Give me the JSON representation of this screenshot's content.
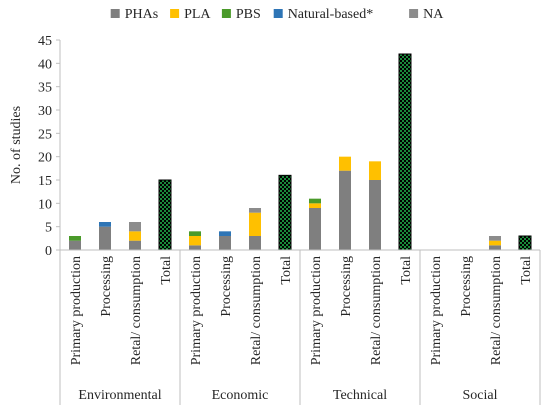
{
  "chart_data": {
    "type": "bar",
    "stacked": true,
    "title": "",
    "xlabel": "",
    "ylabel": "No. of studies",
    "ylim": [
      0,
      45
    ],
    "yticks": [
      0,
      5,
      10,
      15,
      20,
      25,
      30,
      35,
      40,
      45
    ],
    "grid": false,
    "legend_position": "top",
    "categories": [
      "Primary production",
      "Processing",
      "Retal/ consumption",
      "Total",
      "Primary production",
      "Processing",
      "Retal/ consumption",
      "Total",
      "Primary production",
      "Processing",
      "Retal/ consumption",
      "Total",
      "Primary production",
      "Processing",
      "Retal/ consumption",
      "Total"
    ],
    "groups": [
      {
        "name": "Environmental",
        "span": [
          0,
          3
        ]
      },
      {
        "name": "Economic",
        "span": [
          4,
          7
        ]
      },
      {
        "name": "Technical",
        "span": [
          8,
          11
        ]
      },
      {
        "name": "Social",
        "span": [
          12,
          15
        ]
      }
    ],
    "series": [
      {
        "name": "PHAs",
        "color": "#7f7f7f",
        "values": [
          2,
          5,
          2,
          0,
          1,
          3,
          3,
          0,
          9,
          17,
          15,
          0,
          0,
          0,
          1,
          0
        ]
      },
      {
        "name": "PLA",
        "color": "#ffc000",
        "values": [
          0,
          0,
          2,
          0,
          2,
          0,
          5,
          0,
          1,
          3,
          4,
          0,
          0,
          0,
          1,
          0
        ]
      },
      {
        "name": "PBS",
        "color": "#4a9a2a",
        "values": [
          1,
          0,
          0,
          0,
          1,
          0,
          0,
          0,
          1,
          0,
          0,
          0,
          0,
          0,
          0,
          0
        ]
      },
      {
        "name": "Natural-based*",
        "color": "#2e75b6",
        "values": [
          0,
          1,
          0,
          0,
          0,
          1,
          0,
          0,
          0,
          0,
          0,
          0,
          0,
          0,
          0,
          0
        ]
      },
      {
        "name": "NA",
        "color": "#8c8c8c",
        "values": [
          0,
          0,
          2,
          0,
          0,
          0,
          1,
          0,
          0,
          0,
          0,
          0,
          0,
          0,
          1,
          0
        ]
      }
    ],
    "totals": {
      "label": "Total",
      "pattern_colors": [
        "#1a8a3a",
        "#000000"
      ],
      "values": [
        15,
        16,
        42,
        3
      ]
    }
  }
}
